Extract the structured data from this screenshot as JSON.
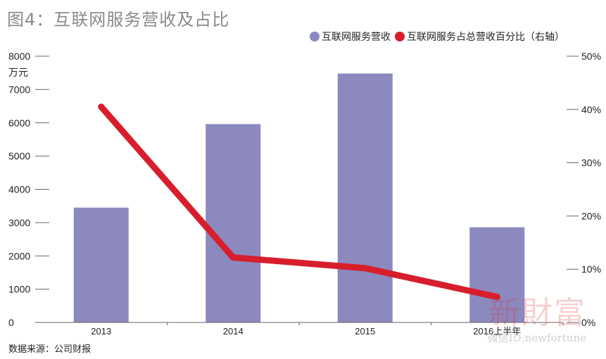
{
  "title": "图4：互联网服务营收及占比",
  "unit_label": "万元",
  "source": "数据来源：公司财报",
  "watermark": {
    "brand": "新財富",
    "id": "微信ID:newfortune"
  },
  "colors": {
    "bar": "#8b89be",
    "line": "#d81e2c",
    "axis": "#666666"
  },
  "chart_data": {
    "type": "bar",
    "categories": [
      "2013",
      "2014",
      "2015",
      "2016上半年"
    ],
    "series": [
      {
        "name": "互联网服务营收",
        "type": "bar",
        "axis": "left",
        "values": [
          3450,
          5960,
          7480,
          2860
        ]
      },
      {
        "name": "互联网服务占总营收百分比（右轴）",
        "type": "line",
        "axis": "right",
        "values": [
          40.5,
          12.2,
          10.2,
          4.8
        ]
      }
    ],
    "left_axis": {
      "min": 0,
      "max": 8000,
      "ticks": [
        "0",
        "1000",
        "2000",
        "3000",
        "4000",
        "5000",
        "6000",
        "7000",
        "8000"
      ]
    },
    "right_axis": {
      "min": 0,
      "max": 50,
      "ticks": [
        "0%",
        "10%",
        "20%",
        "30%",
        "40%",
        "50%"
      ]
    },
    "grid": false,
    "legend_position": "top-right"
  }
}
